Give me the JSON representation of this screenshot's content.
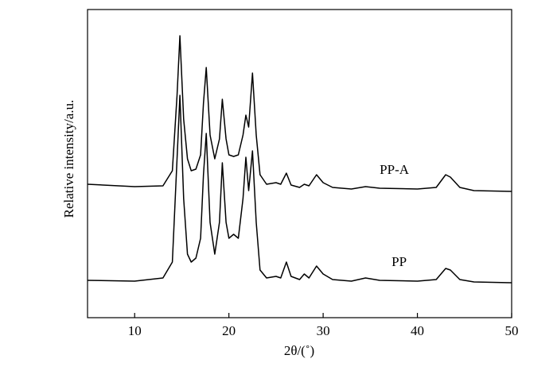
{
  "chart_data": {
    "type": "line",
    "x_label": "2θ/(˚)",
    "y_label": "Relative intensity/a.u.",
    "x": [
      5,
      10,
      13,
      14,
      14.5,
      14.8,
      15.2,
      15.6,
      16,
      16.5,
      17,
      17.3,
      17.6,
      18,
      18.5,
      19,
      19.3,
      19.7,
      20,
      20.5,
      21,
      21.5,
      21.8,
      22.1,
      22.5,
      22.9,
      23.3,
      24,
      25,
      25.5,
      26.1,
      26.6,
      27.5,
      28,
      28.5,
      29.3,
      30,
      31,
      33,
      34.5,
      36,
      40,
      42,
      43,
      43.5,
      44.5,
      46,
      50
    ],
    "series": [
      {
        "name": "PP-A",
        "color": "#000000",
        "values": [
          168,
          165,
          166,
          185,
          280,
          355,
          250,
          200,
          185,
          187,
          205,
          270,
          315,
          230,
          200,
          225,
          275,
          225,
          205,
          203,
          205,
          230,
          255,
          240,
          308,
          230,
          180,
          168,
          170,
          168,
          182,
          167,
          164,
          168,
          166,
          180,
          170,
          164,
          162,
          165,
          163,
          162,
          164,
          180,
          177,
          164,
          160,
          159
        ]
      },
      {
        "name": "PP",
        "color": "#000000",
        "values": [
          47,
          46,
          50,
          70,
          200,
          280,
          150,
          80,
          70,
          75,
          100,
          180,
          232,
          120,
          80,
          120,
          195,
          120,
          100,
          105,
          100,
          150,
          202,
          160,
          210,
          120,
          60,
          50,
          52,
          50,
          70,
          52,
          48,
          55,
          50,
          65,
          55,
          48,
          46,
          50,
          47,
          46,
          48,
          62,
          60,
          48,
          45,
          44
        ]
      }
    ],
    "xlim": [
      5,
      50
    ],
    "xticks": [
      10,
      20,
      30,
      40,
      50
    ],
    "ylim": [
      0,
      388
    ]
  }
}
